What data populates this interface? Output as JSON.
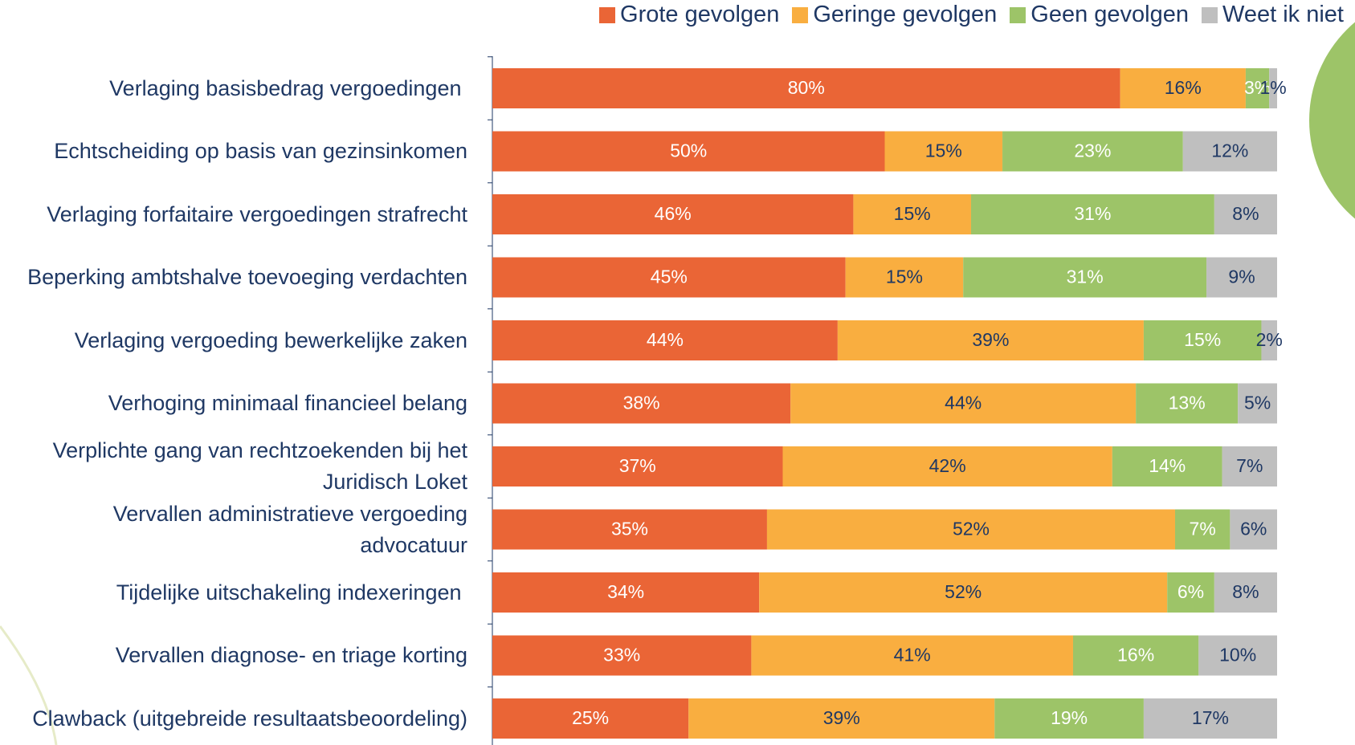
{
  "chart_data": {
    "type": "stacked_bar_horizontal",
    "categories": [
      "Verlaging basisbedrag vergoedingen ",
      "Echtscheiding op basis van gezinsinkomen",
      "Verlaging forfaitaire vergoedingen strafrecht",
      "Beperking ambtshalve toevoeging verdachten",
      "Verlaging vergoeding bewerkelijke zaken",
      "Verhoging minimaal financieel belang",
      "Verplichte gang van rechtzoekenden bij het Juridisch Loket",
      "Vervallen administratieve vergoeding advocatuur",
      "Tijdelijke uitschakeling indexeringen ",
      "Vervallen diagnose- en triage korting",
      "Clawback (uitgebreide resultaatsbeoordeling)"
    ],
    "series": [
      {
        "name": "Grote gevolgen",
        "color": "#EA6536",
        "label_color": "#FFFFFF",
        "values": [
          80,
          50,
          46,
          45,
          44,
          38,
          37,
          35,
          34,
          33,
          25
        ],
        "value_labels": [
          "80%",
          "50%",
          "46%",
          "45%",
          "44%",
          "38%",
          "37%",
          "35%",
          "34%",
          "33%",
          "25%"
        ]
      },
      {
        "name": "Geringe gevolgen",
        "color": "#F9AE40",
        "label_color": "#1F3864",
        "values": [
          16,
          15,
          15,
          15,
          39,
          44,
          42,
          52,
          52,
          41,
          39
        ],
        "value_labels": [
          "16%",
          "15%",
          "15%",
          "15%",
          "39%",
          "44%",
          "42%",
          "52%",
          "52%",
          "41%",
          "39%"
        ]
      },
      {
        "name": "Geen gevolgen",
        "color": "#9DC468",
        "label_color": "#FFFFFF",
        "values": [
          3,
          23,
          31,
          31,
          15,
          13,
          14,
          7,
          6,
          16,
          19
        ],
        "value_labels": [
          "3%",
          "23%",
          "31%",
          "31%",
          "15%",
          "13%",
          "14%",
          "7%",
          "6%",
          "16%",
          "19%"
        ]
      },
      {
        "name": "Weet ik niet",
        "color": "#BFBFBF",
        "label_color": "#1F3864",
        "values": [
          1,
          12,
          8,
          9,
          2,
          5,
          7,
          6,
          8,
          10,
          17
        ],
        "value_labels": [
          "1%",
          "12%",
          "8%",
          "9%",
          "2%",
          "5%",
          "7%",
          "6%",
          "8%",
          "10%",
          "17%"
        ]
      }
    ],
    "xlim": [
      0,
      100
    ],
    "legend": "top"
  }
}
